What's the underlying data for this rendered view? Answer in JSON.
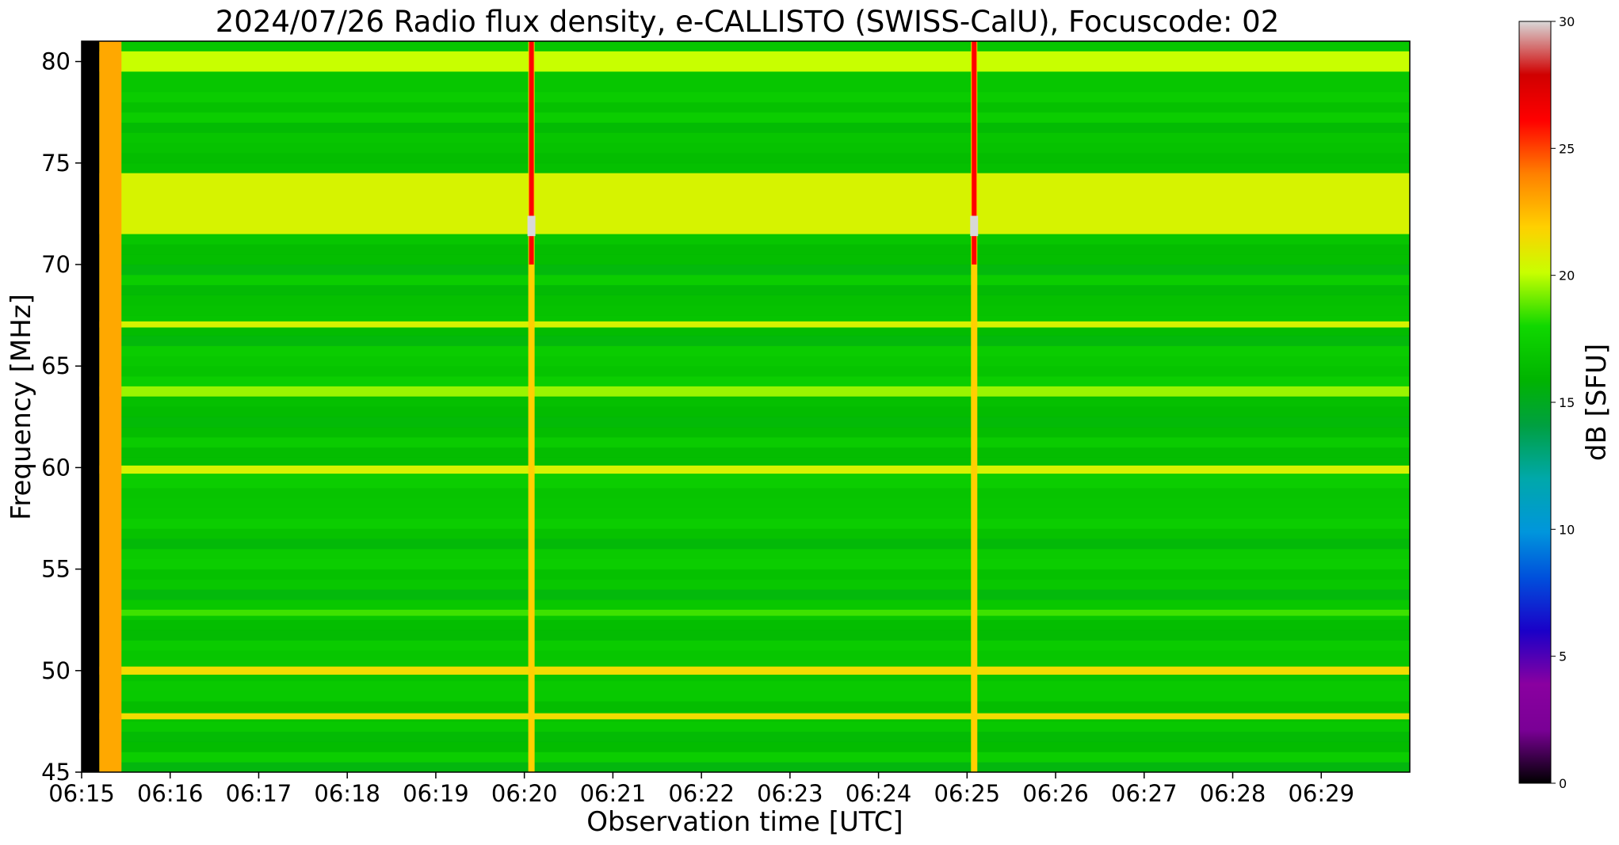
{
  "chart_data": {
    "type": "heatmap",
    "title": "2024/07/26  Radio flux density, e-CALLISTO (SWISS-CalU), Focuscode: 02",
    "xlabel": "Observation time [UTC]",
    "ylabel": "Frequency [MHz]",
    "colorbar_label": "dB [SFU]",
    "x_range_minutes": [
      0,
      15
    ],
    "x_ticks": [
      {
        "label": "06:15",
        "minute": 0
      },
      {
        "label": "06:16",
        "minute": 1
      },
      {
        "label": "06:17",
        "minute": 2
      },
      {
        "label": "06:18",
        "minute": 3
      },
      {
        "label": "06:19",
        "minute": 4
      },
      {
        "label": "06:20",
        "minute": 5
      },
      {
        "label": "06:21",
        "minute": 6
      },
      {
        "label": "06:22",
        "minute": 7
      },
      {
        "label": "06:23",
        "minute": 8
      },
      {
        "label": "06:24",
        "minute": 9
      },
      {
        "label": "06:25",
        "minute": 10
      },
      {
        "label": "06:26",
        "minute": 11
      },
      {
        "label": "06:27",
        "minute": 12
      },
      {
        "label": "06:28",
        "minute": 13
      },
      {
        "label": "06:29",
        "minute": 14
      }
    ],
    "ylim": [
      45,
      81
    ],
    "y_ticks": [
      45,
      50,
      55,
      60,
      65,
      70,
      75,
      80
    ],
    "clim": [
      0,
      30
    ],
    "colorbar_ticks": [
      0,
      5,
      10,
      15,
      20,
      25,
      30
    ],
    "colormap": "nipy_spectral-like",
    "background_level_db": 17,
    "data_start_minute": 0.45,
    "features": {
      "horizontal_bands": [
        {
          "freq_mhz": [
            71.5,
            74.5
          ],
          "level_db": 20.5
        },
        {
          "freq_mhz": [
            79.5,
            80.5
          ],
          "level_db": 20
        },
        {
          "freq_mhz": [
            66.9,
            67.2
          ],
          "level_db": 20.5
        },
        {
          "freq_mhz": [
            63.5,
            64.0
          ],
          "level_db": 19.5
        },
        {
          "freq_mhz": [
            59.7,
            60.1
          ],
          "level_db": 20.5
        },
        {
          "freq_mhz": [
            49.8,
            50.2
          ],
          "level_db": 21.5
        },
        {
          "freq_mhz": [
            47.6,
            47.9
          ],
          "level_db": 21.5
        },
        {
          "freq_mhz": [
            52.7,
            53.0
          ],
          "level_db": 18.5
        }
      ],
      "vertical_bursts": [
        {
          "minute": 5.08,
          "peak_db": 26,
          "max_db": 30
        },
        {
          "minute": 10.08,
          "peak_db": 26,
          "max_db": 30
        }
      ],
      "edge_column": {
        "minute_range": [
          0.2,
          0.45
        ],
        "level_db": 23
      }
    }
  }
}
